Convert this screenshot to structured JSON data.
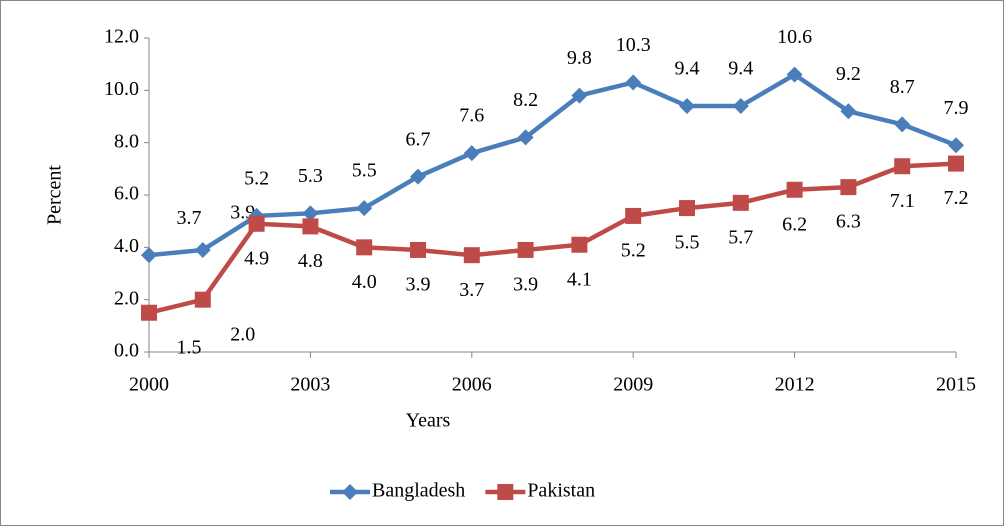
{
  "chart_data": {
    "type": "line",
    "x_label": "Years",
    "y_label": "Percent",
    "x": [
      2000,
      2001,
      2002,
      2003,
      2004,
      2005,
      2006,
      2007,
      2008,
      2009,
      2010,
      2011,
      2012,
      2013,
      2014,
      2015
    ],
    "xlim": [
      2000,
      2015
    ],
    "xticks": [
      2000,
      2003,
      2006,
      2009,
      2012,
      2015
    ],
    "ylim": [
      0,
      12
    ],
    "yticks": [
      {
        "value": 0,
        "label": "0.0"
      },
      {
        "value": 2,
        "label": "2.0"
      },
      {
        "value": 4,
        "label": "4.0"
      },
      {
        "value": 6,
        "label": "6.0"
      },
      {
        "value": 8,
        "label": "8.0"
      },
      {
        "value": 10,
        "label": "10.0"
      },
      {
        "value": 12,
        "label": "12.0"
      }
    ],
    "legend": "bottom",
    "series": [
      {
        "name": "Bangladesh",
        "color": "#4a7ebb",
        "marker": "diamond",
        "values": [
          3.7,
          3.9,
          5.2,
          5.3,
          5.5,
          6.7,
          7.6,
          8.2,
          9.8,
          10.3,
          9.4,
          9.4,
          10.6,
          9.2,
          8.7,
          7.9
        ],
        "value_labels": [
          "3.7",
          "3.9",
          "5.2",
          "5.3",
          "5.5",
          "6.7",
          "7.6",
          "8.2",
          "9.8",
          "10.3",
          "9.4",
          "9.4",
          "10.6",
          "9.2",
          "8.7",
          "7.9"
        ]
      },
      {
        "name": "Pakistan",
        "color": "#be4b48",
        "marker": "square",
        "values": [
          1.5,
          2.0,
          4.9,
          4.8,
          4.0,
          3.9,
          3.7,
          3.9,
          4.1,
          5.2,
          5.5,
          5.7,
          6.2,
          6.3,
          7.1,
          7.2
        ],
        "value_labels": [
          "1.5",
          "2.0",
          "4.9",
          "4.8",
          "4.0",
          "3.9",
          "3.7",
          "3.9",
          "4.1",
          "5.2",
          "5.5",
          "5.7",
          "6.2",
          "6.3",
          "7.1",
          "7.2"
        ]
      }
    ]
  }
}
